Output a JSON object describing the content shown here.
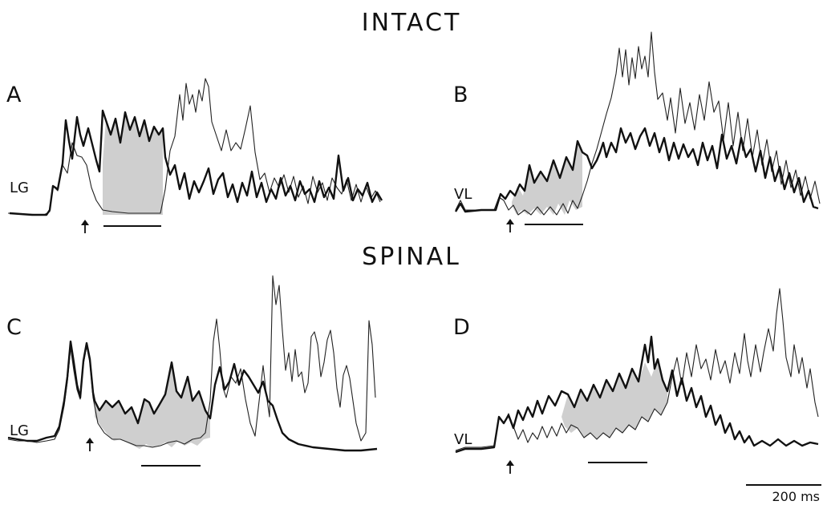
{
  "headings": {
    "intact": "INTACT",
    "spinal": "SPINAL"
  },
  "panels": [
    {
      "letter": "A",
      "muscle": "LG"
    },
    {
      "letter": "B",
      "muscle": "VL"
    },
    {
      "letter": "C",
      "muscle": "LG"
    },
    {
      "letter": "D",
      "muscle": "VL"
    }
  ],
  "scale_bar": {
    "label": "200 ms"
  },
  "colors": {
    "thick_trace": "#111111",
    "thin_trace": "#222222",
    "shading": "#cfcfcf"
  },
  "icons": {
    "stimulus_marker": "up-arrow-icon"
  }
}
